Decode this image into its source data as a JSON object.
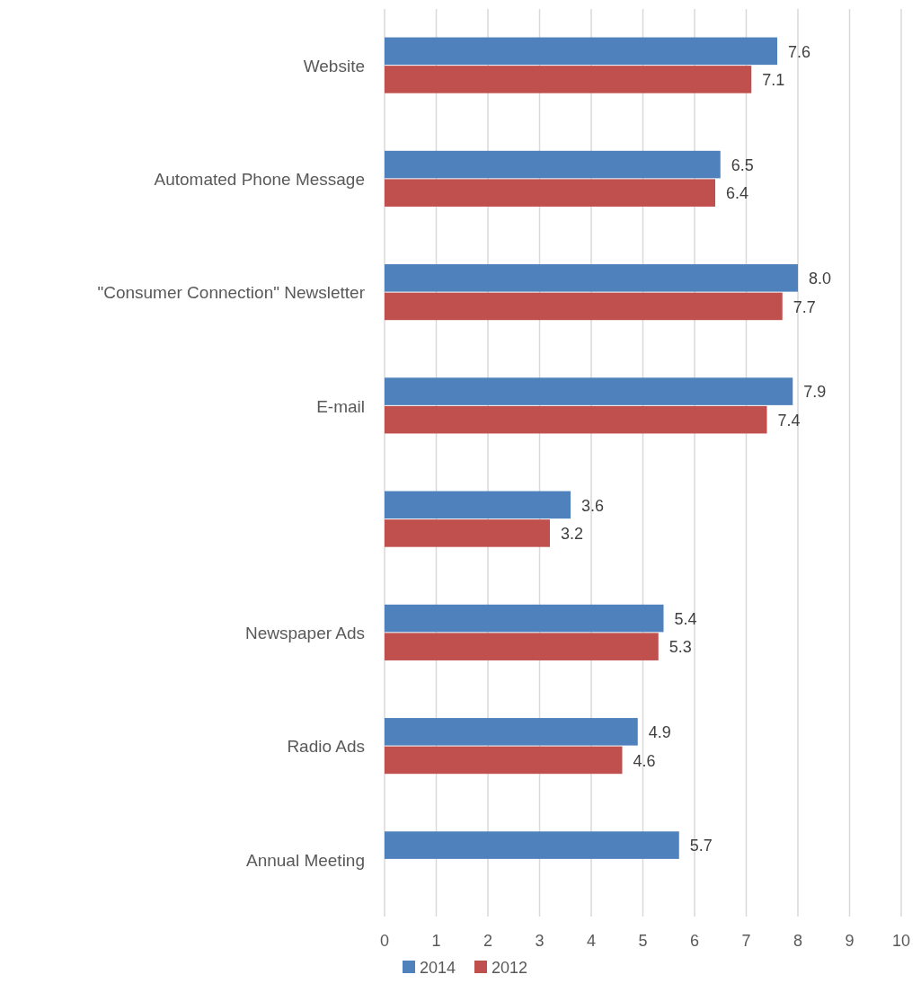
{
  "chart_data": {
    "type": "bar",
    "orientation": "horizontal",
    "categories": [
      "Website",
      "Automated Phone Message",
      "\"Consumer Connection\" Newsletter",
      "E-mail",
      null,
      "Newspaper Ads",
      "Radio Ads",
      "Annual Meeting"
    ],
    "series": [
      {
        "name": "2014",
        "color": "#4f81bd",
        "values": [
          7.6,
          6.5,
          8.0,
          7.9,
          3.6,
          5.4,
          4.9,
          5.7
        ],
        "value_labels": [
          "7.6",
          "6.5",
          "8.0",
          "7.9",
          "3.6",
          "5.4",
          "4.9",
          "5.7"
        ]
      },
      {
        "name": "2012",
        "color": "#c0504d",
        "values": [
          7.1,
          6.4,
          7.7,
          7.4,
          3.2,
          5.3,
          4.6,
          null
        ],
        "value_labels": [
          "7.1",
          "6.4",
          "7.7",
          "7.4",
          "3.2",
          "5.3",
          "4.6",
          null
        ]
      }
    ],
    "xlim": [
      0,
      10
    ],
    "xticks": [
      0,
      1,
      2,
      3,
      4,
      5,
      6,
      7,
      8,
      9,
      10
    ],
    "grid": "x",
    "legend": "bottom"
  }
}
